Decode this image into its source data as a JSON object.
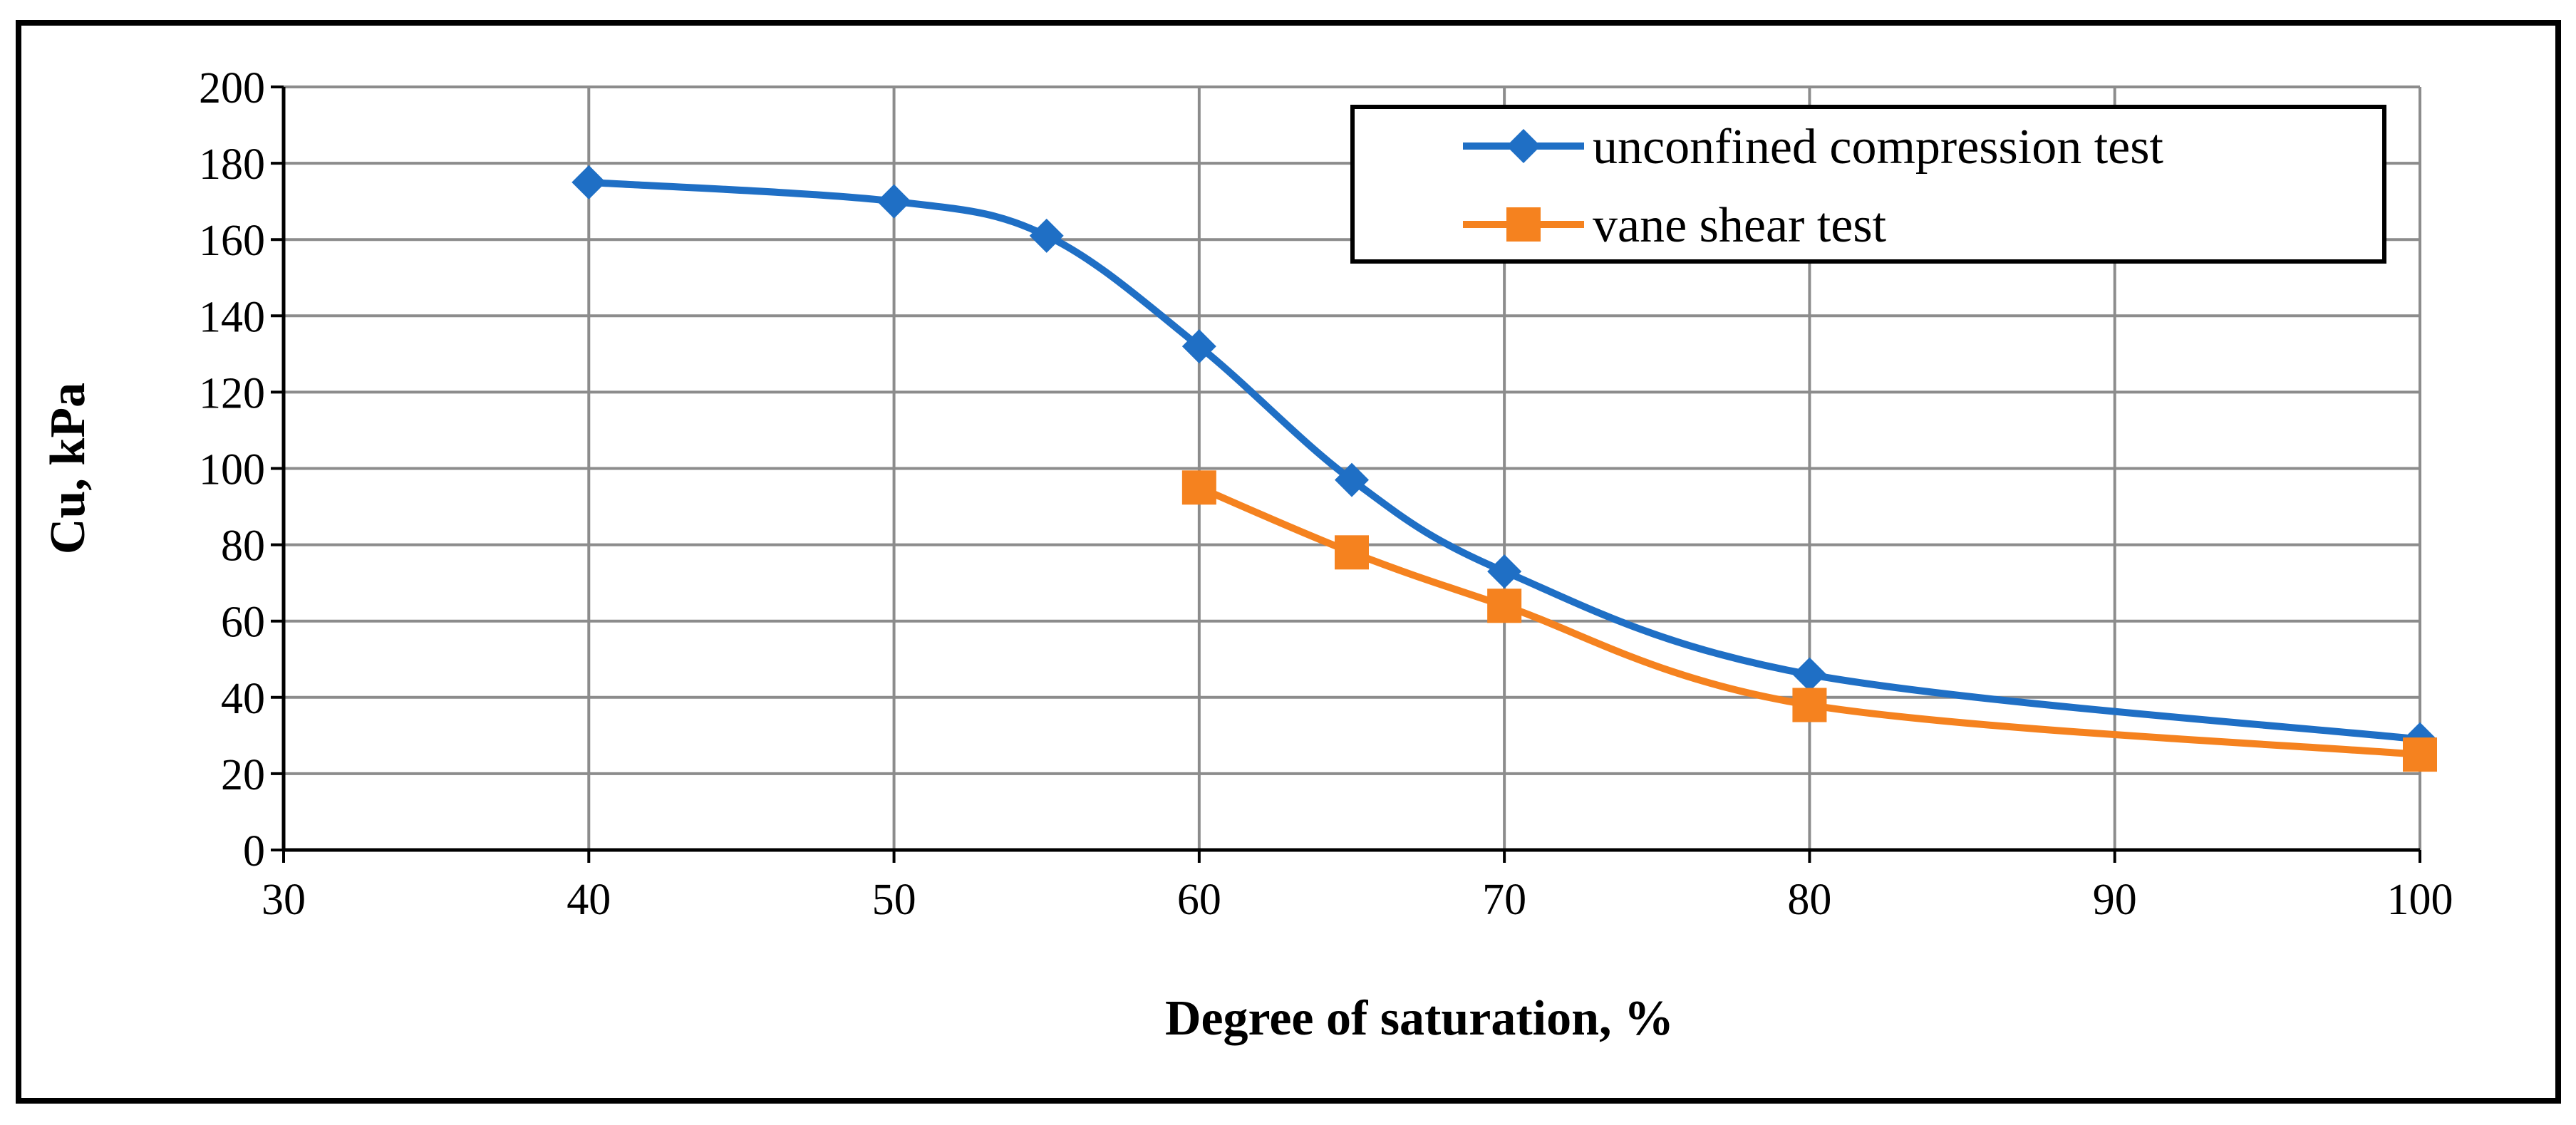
{
  "chart_data": {
    "type": "line",
    "smooth": true,
    "title": "",
    "xlabel": "Degree of saturation, %",
    "ylabel": "Cu, kPa",
    "xlim": [
      30,
      100
    ],
    "ylim": [
      0,
      200
    ],
    "xticks": [
      30,
      40,
      50,
      60,
      70,
      80,
      90,
      100
    ],
    "yticks": [
      0,
      20,
      40,
      60,
      80,
      100,
      120,
      140,
      160,
      180,
      200
    ],
    "grid": true,
    "legend_position": "top-right",
    "series": [
      {
        "name": "unconfined compression test",
        "color": "#1F6FC5",
        "marker": "diamond",
        "x": [
          40,
          50,
          55,
          60,
          65,
          70,
          80,
          100
        ],
        "y": [
          175,
          170,
          161,
          132,
          97,
          73,
          46,
          29
        ]
      },
      {
        "name": "vane shear test",
        "color": "#F5821F",
        "marker": "square",
        "x": [
          60,
          65,
          70,
          80,
          100
        ],
        "y": [
          95,
          78,
          64,
          38,
          25
        ]
      }
    ]
  }
}
